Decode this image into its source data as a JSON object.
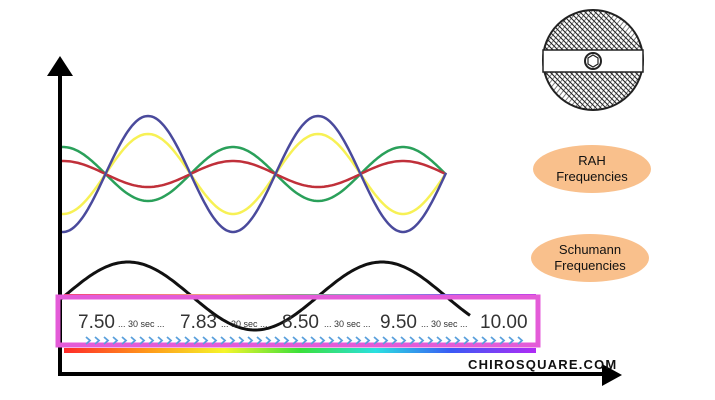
{
  "labels": {
    "rah": [
      "RAH",
      "Frequencies"
    ],
    "schumann": [
      "Schumann",
      "Frequencies"
    ]
  },
  "sequence": {
    "values": [
      "7.50",
      "7.83",
      "8.50",
      "9.50",
      "10.00"
    ],
    "interval": "... 30 sec ..."
  },
  "brand": "CHIROSQUARE.COM",
  "colors": {
    "wave_blue": "#4a4a9c",
    "wave_yellow": "#f7f155",
    "wave_green": "#2aa05a",
    "wave_red": "#c0303a",
    "schumann_wave": "#111111",
    "frame": "#e45bd8",
    "pill": "#f9c08c",
    "chevrons": "#5aa0dc"
  },
  "icons": [
    "seal-emblem-icon",
    "arrow-head-icon",
    "chevron-icon"
  ]
}
